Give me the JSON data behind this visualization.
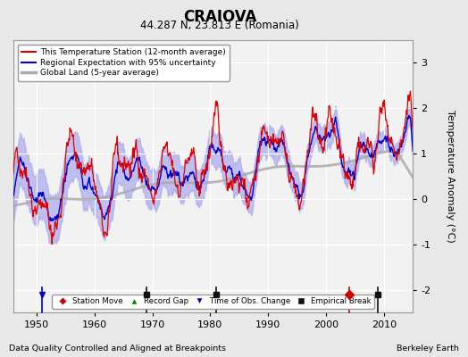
{
  "title": "CRAIOVA",
  "subtitle": "44.287 N, 23.813 E (Romania)",
  "xlabel_bottom": "Data Quality Controlled and Aligned at Breakpoints",
  "xlabel_right": "Berkeley Earth",
  "ylabel": "Temperature Anomaly (°C)",
  "xlim": [
    1946,
    2015
  ],
  "ylim": [
    -2.5,
    3.5
  ],
  "yticks": [
    -2,
    -1,
    0,
    1,
    2,
    3
  ],
  "xticks": [
    1950,
    1960,
    1970,
    1980,
    1990,
    2000,
    2010
  ],
  "background_color": "#e8e8e8",
  "plot_bg_color": "#f2f2f2",
  "grid_color": "#ffffff",
  "station_color": "#dd0000",
  "regional_color": "#0000cc",
  "regional_fill_color": "#aaaaee",
  "global_color": "#aaaaaa",
  "legend_fs": 7,
  "seed": 42,
  "marker_events": {
    "station_move": {
      "year": 2004,
      "color": "#cc0000",
      "marker": "D"
    },
    "empirical_breaks_years": [
      1969,
      1981,
      2009
    ],
    "time_of_obs_years": [
      1951
    ]
  }
}
